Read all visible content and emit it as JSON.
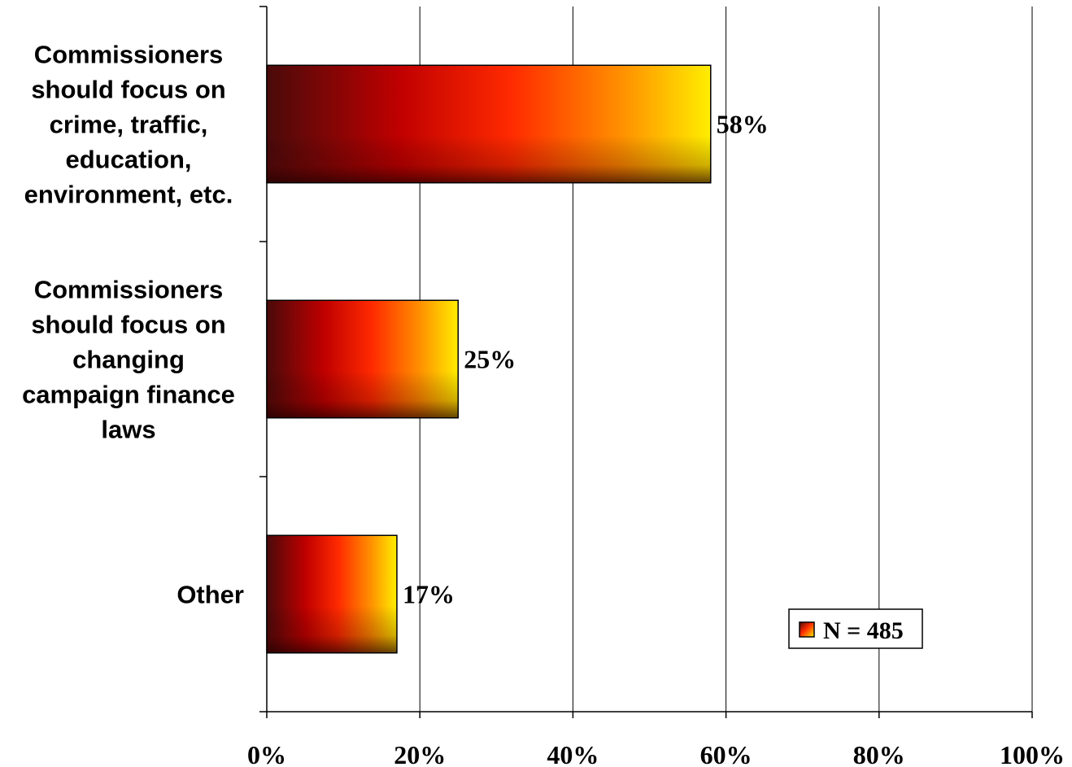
{
  "chart_data": {
    "type": "bar",
    "orientation": "horizontal",
    "categories": [
      "Commissioners should focus on crime, traffic, education, environment, etc.",
      "Commissioners should focus on changing campaign finance laws",
      "Other"
    ],
    "category_lines": [
      [
        "Commissioners",
        "should focus on",
        "crime, traffic,",
        "education,",
        "environment, etc."
      ],
      [
        "Commissioners",
        "should focus on",
        "changing",
        "campaign finance",
        "laws"
      ],
      [
        "Other"
      ]
    ],
    "values": [
      58,
      25,
      17
    ],
    "data_labels": [
      "58%",
      "25%",
      "17%"
    ],
    "xlim": [
      0,
      100
    ],
    "xticks": [
      0,
      20,
      40,
      60,
      80,
      100
    ],
    "xtick_labels": [
      "0%",
      "20%",
      "40%",
      "60%",
      "80%",
      "100%"
    ],
    "grid": "vertical",
    "legend": {
      "entries": [
        "N = 485"
      ],
      "placement": "bottom-right"
    },
    "colors": {
      "dark": "#4a0a0a",
      "red": "#ff1a00",
      "orange": "#ff8c00",
      "yellow": "#ffee00"
    }
  }
}
